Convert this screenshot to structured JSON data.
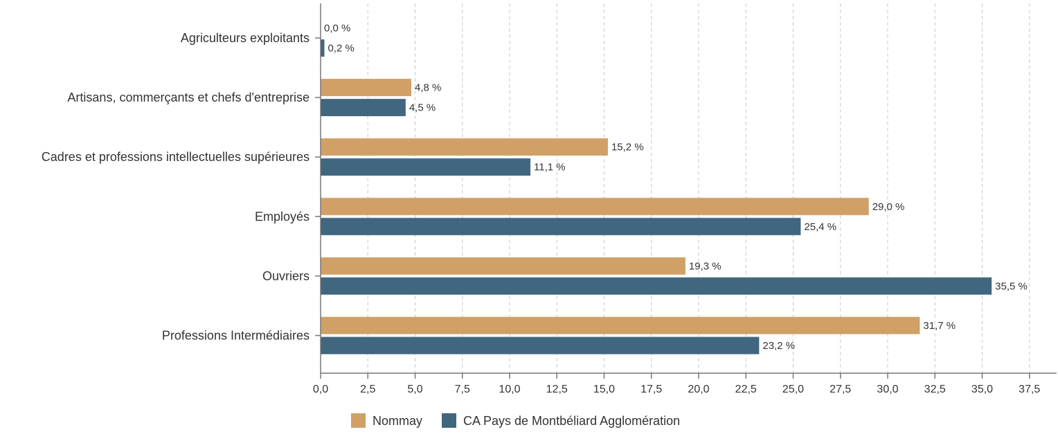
{
  "chart_data": {
    "type": "bar",
    "orientation": "horizontal",
    "categories": [
      "Agriculteurs exploitants",
      "Artisans, commerçants et chefs d'entreprise",
      "Cadres et professions intellectuelles supérieures",
      "Employés",
      "Ouvriers",
      "Professions Intermédiaires"
    ],
    "series": [
      {
        "name": "Nommay",
        "color": "#d0a066",
        "values": [
          0.0,
          4.8,
          15.2,
          29.0,
          19.3,
          31.7
        ],
        "labels": [
          "0,0 %",
          "4,8 %",
          "15,2 %",
          "29,0 %",
          "19,3 %",
          "31,7 %"
        ]
      },
      {
        "name": "CA Pays de Montbéliard Agglomération",
        "color": "#41667f",
        "values": [
          0.2,
          4.5,
          11.1,
          25.4,
          35.5,
          23.2
        ],
        "labels": [
          "0,2 %",
          "4,5 %",
          "11,1 %",
          "25,4 %",
          "35,5 %",
          "23,2 %"
        ]
      }
    ],
    "xlim": [
      0,
      39
    ],
    "xticks": [
      0,
      2.5,
      5,
      7.5,
      10,
      12.5,
      15,
      17.5,
      20,
      22.5,
      25,
      27.5,
      30,
      32.5,
      35,
      37.5
    ],
    "xtick_labels": [
      "0,0",
      "2,5",
      "5,0",
      "7,5",
      "10,0",
      "12,5",
      "15,0",
      "17,5",
      "20,0",
      "22,5",
      "25,0",
      "27,5",
      "30,0",
      "32,5",
      "35,0",
      "37,5"
    ],
    "grid": "vertical-dashed",
    "legend_position": "bottom"
  }
}
